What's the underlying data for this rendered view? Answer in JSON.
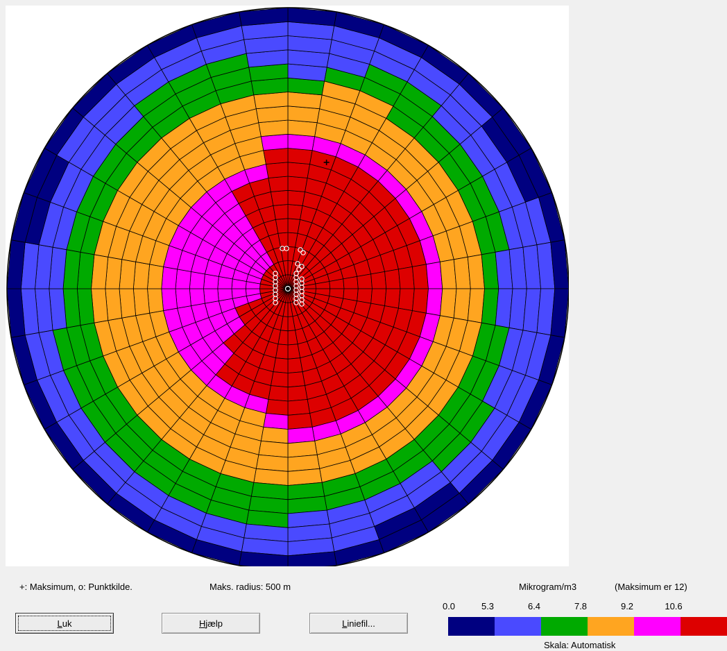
{
  "legend_text": {
    "markers": "+: Maksimum,  o: Punktkilde.",
    "max_radius": "Maks. radius:  500 m",
    "unit": "Mikrogram/m3",
    "maximum": "(Maksimum er  12)",
    "scale": "Skala:  Automatisk"
  },
  "buttons": {
    "close": "Luk",
    "help": "Hjælp",
    "line_file": "Liniefil..."
  },
  "scale": {
    "ticks": [
      "0.0",
      "5.3",
      "6.4",
      "7.8",
      "9.2",
      "10.6"
    ],
    "colors": [
      "#000080",
      "#4a4aff",
      "#00aa00",
      "#ffa520",
      "#ff00ff",
      "#dd0000"
    ]
  },
  "chart_data": {
    "type": "heatmap",
    "title": "",
    "sectors": 36,
    "rings": 20,
    "max_radius_m": 500,
    "maximum_value": 12,
    "unit": "Mikrogram/m3",
    "class_thresholds": [
      0.0,
      5.3,
      6.4,
      7.8,
      9.2,
      10.6
    ],
    "sector_boundary_rings": [
      [
        17,
        16,
        14,
        13,
        13,
        10,
        7,
        7,
        7,
        7,
        7,
        7,
        7,
        8,
        9,
        10,
        10,
        10
      ],
      [
        10,
        9,
        7,
        7,
        7,
        7,
        7,
        8,
        8,
        10,
        10,
        11,
        11,
        14,
        14,
        16,
        17,
        17
      ]
    ],
    "class_boundaries_note": "per sector: ring index where class changes from red(5) to magenta(4), orange(3), green(2), blue(1), navy(0)",
    "per_sector_classes": [
      [
        10,
        11,
        14,
        15,
        19
      ],
      [
        10,
        11,
        15,
        16,
        19
      ],
      [
        10,
        11,
        15,
        17,
        19
      ],
      [
        10,
        11,
        14,
        17,
        19
      ],
      [
        10,
        11,
        14,
        16,
        19
      ],
      [
        10,
        11,
        14,
        16,
        18
      ],
      [
        10,
        11,
        14,
        16,
        18
      ],
      [
        10,
        11,
        14,
        16,
        19
      ],
      [
        10,
        11,
        14,
        15,
        19
      ],
      [
        10,
        11,
        14,
        15,
        19
      ],
      [
        10,
        11,
        14,
        16,
        19
      ],
      [
        10,
        11,
        14,
        16,
        19
      ],
      [
        10,
        11,
        14,
        17,
        19
      ],
      [
        10,
        11,
        14,
        17,
        19
      ],
      [
        10,
        11,
        14,
        16,
        18
      ],
      [
        10,
        11,
        14,
        16,
        18
      ],
      [
        10,
        11,
        14,
        16,
        19
      ],
      [
        10,
        11,
        14,
        16,
        19
      ],
      [
        9,
        10,
        14,
        17,
        19
      ],
      [
        8,
        9,
        14,
        17,
        19
      ],
      [
        8,
        9,
        14,
        17,
        19
      ],
      [
        8,
        9,
        14,
        17,
        19
      ],
      [
        6,
        9,
        14,
        17,
        19
      ],
      [
        4,
        9,
        14,
        17,
        19
      ],
      [
        4,
        9,
        14,
        17,
        19
      ],
      [
        2,
        9,
        14,
        17,
        19
      ],
      [
        2,
        9,
        14,
        16,
        19
      ],
      [
        2,
        9,
        14,
        16,
        19
      ],
      [
        2,
        9,
        14,
        16,
        18
      ],
      [
        2,
        9,
        14,
        16,
        18
      ],
      [
        2,
        9,
        14,
        16,
        19
      ],
      [
        2,
        9,
        14,
        16,
        19
      ],
      [
        2,
        9,
        14,
        17,
        19
      ],
      [
        8,
        9,
        14,
        17,
        19
      ],
      [
        8,
        9,
        14,
        17,
        19
      ],
      [
        10,
        11,
        14,
        16,
        19
      ]
    ],
    "maximum_marker_position": {
      "angle_deg": 17,
      "radius_m": 235
    },
    "point_sources": 30
  }
}
